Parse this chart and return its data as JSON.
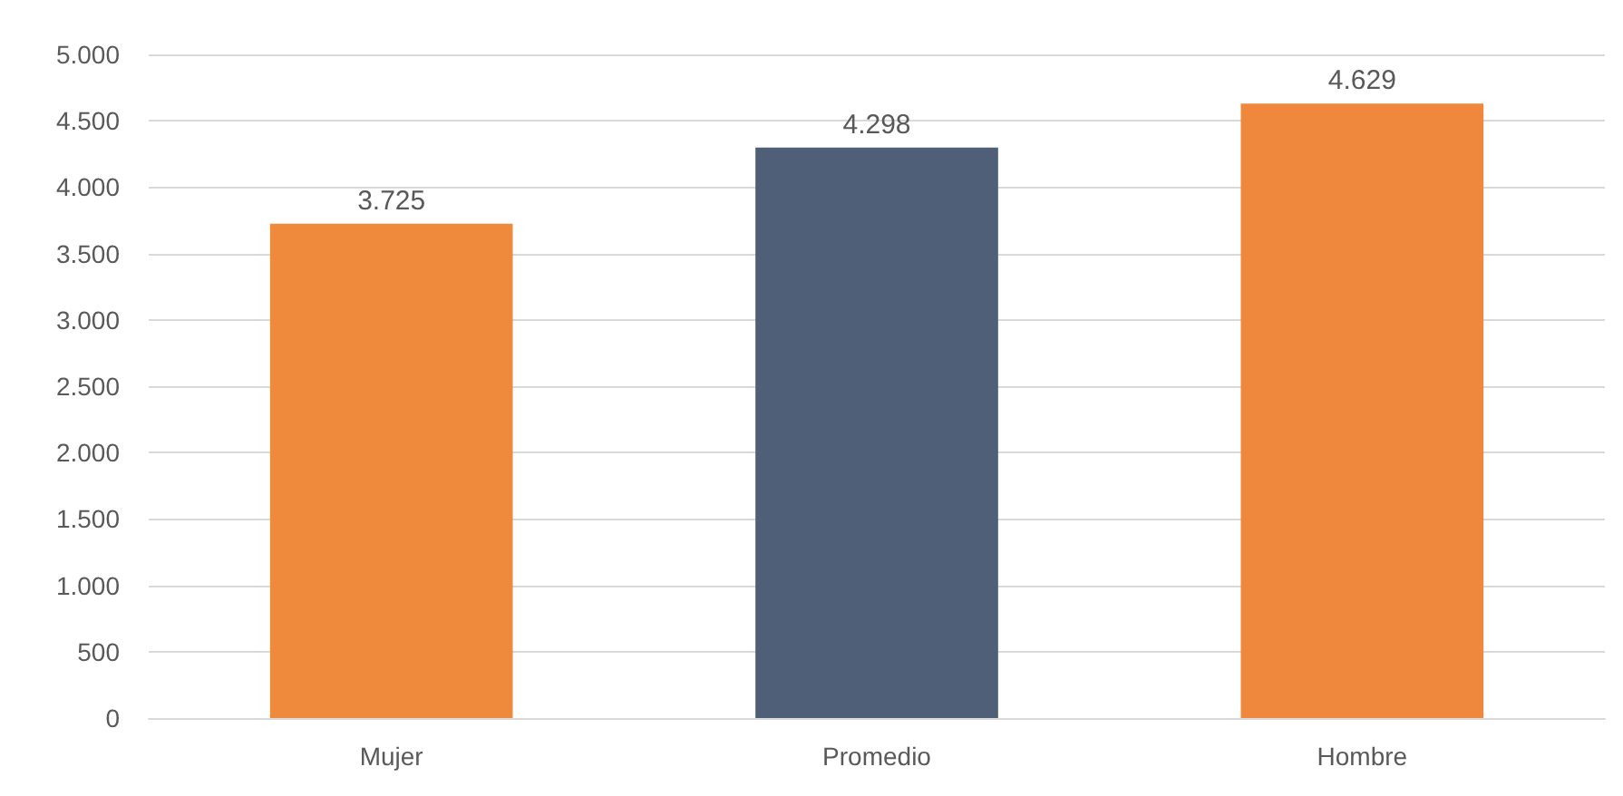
{
  "chart_data": {
    "type": "bar",
    "categories": [
      "Mujer",
      "Promedio",
      "Hombre"
    ],
    "values": [
      3725,
      4298,
      4629
    ],
    "colors": [
      "#ef8a3c",
      "#4f5f78",
      "#ef873d"
    ],
    "value_labels": [
      "3.725",
      "4.298",
      "4.629"
    ],
    "ylim": [
      0,
      5000
    ],
    "yticks": [
      {
        "value": 0,
        "label": "0"
      },
      {
        "value": 500,
        "label": "500"
      },
      {
        "value": 1000,
        "label": "1.000"
      },
      {
        "value": 1500,
        "label": "1.500"
      },
      {
        "value": 2000,
        "label": "2.000"
      },
      {
        "value": 2500,
        "label": "2.500"
      },
      {
        "value": 3000,
        "label": "3.000"
      },
      {
        "value": 3500,
        "label": "3.500"
      },
      {
        "value": 4000,
        "label": "4.000"
      },
      {
        "value": 4500,
        "label": "4.500"
      },
      {
        "value": 5000,
        "label": "5.000"
      }
    ],
    "grid": "y"
  }
}
